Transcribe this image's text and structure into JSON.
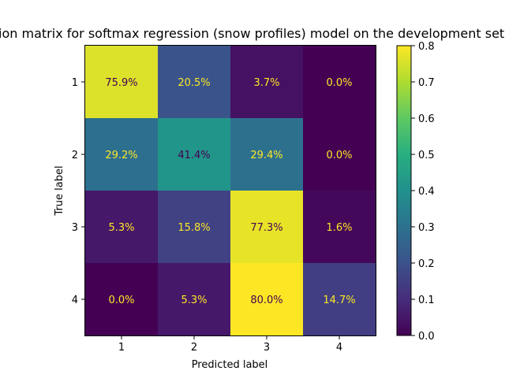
{
  "chart_data": {
    "type": "heatmap",
    "title": "Confusion matrix for softmax regression (snow profiles) model on the development set",
    "xlabel": "Predicted label",
    "ylabel": "True label",
    "x_categories": [
      "1",
      "2",
      "3",
      "4"
    ],
    "y_categories": [
      "1",
      "2",
      "3",
      "4"
    ],
    "values": [
      [
        0.759,
        0.205,
        0.037,
        0.0
      ],
      [
        0.292,
        0.414,
        0.294,
        0.0
      ],
      [
        0.053,
        0.158,
        0.773,
        0.016
      ],
      [
        0.0,
        0.053,
        0.8,
        0.147
      ]
    ],
    "cell_labels": [
      [
        "75.9%",
        "20.5%",
        "3.7%",
        "0.0%"
      ],
      [
        "29.2%",
        "41.4%",
        "29.4%",
        "0.0%"
      ],
      [
        "5.3%",
        "15.8%",
        "77.3%",
        "1.6%"
      ],
      [
        "0.0%",
        "5.3%",
        "80.0%",
        "14.7%"
      ]
    ],
    "colorbar": {
      "range": [
        0.0,
        0.8
      ],
      "ticks": [
        "0.0",
        "0.1",
        "0.2",
        "0.3",
        "0.4",
        "0.5",
        "0.6",
        "0.7",
        "0.8"
      ],
      "colormap": "viridis"
    }
  }
}
